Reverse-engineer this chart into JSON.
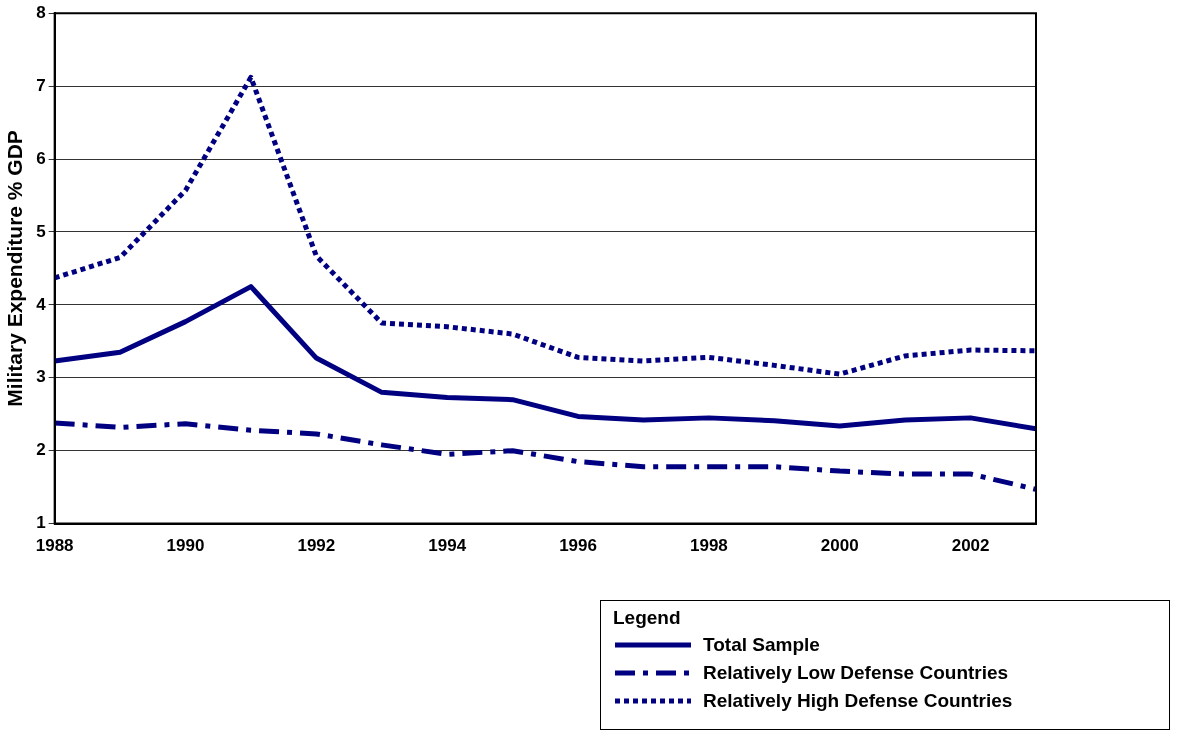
{
  "chart_data": {
    "type": "line",
    "ylabel": "Military Expenditure % GDP",
    "x": [
      1988,
      1989,
      1990,
      1991,
      1992,
      1993,
      1994,
      1995,
      1996,
      1997,
      1998,
      1999,
      2000,
      2001,
      2002,
      2003
    ],
    "series": [
      {
        "name": "Total Sample",
        "color": "#000080",
        "line_style": "solid",
        "values": [
          3.23,
          3.35,
          3.77,
          4.25,
          3.27,
          2.8,
          2.73,
          2.7,
          2.47,
          2.42,
          2.45,
          2.41,
          2.34,
          2.42,
          2.45,
          2.3
        ]
      },
      {
        "name": "Relatively Low Defense Countries",
        "color": "#000080",
        "line_style": "dashed",
        "values": [
          2.38,
          2.32,
          2.37,
          2.28,
          2.23,
          2.08,
          1.95,
          2.0,
          1.85,
          1.78,
          1.78,
          1.78,
          1.72,
          1.68,
          1.68,
          1.47
        ]
      },
      {
        "name": "Relatively High Defense Countries",
        "color": "#000080",
        "line_style": "dotted",
        "values": [
          4.37,
          4.65,
          5.57,
          7.12,
          4.67,
          3.75,
          3.7,
          3.6,
          3.28,
          3.23,
          3.28,
          3.17,
          3.05,
          3.3,
          3.38,
          3.37
        ]
      }
    ],
    "xlim": [
      1988,
      2003
    ],
    "xticks": [
      1988,
      1990,
      1992,
      1994,
      1996,
      1998,
      2000,
      2002
    ],
    "ylim": [
      1,
      8
    ],
    "yticks": [
      1,
      2,
      3,
      4,
      5,
      6,
      7,
      8
    ],
    "grid": "y",
    "marker": "none",
    "legend": "bottom right",
    "legend_title": "Legend"
  }
}
